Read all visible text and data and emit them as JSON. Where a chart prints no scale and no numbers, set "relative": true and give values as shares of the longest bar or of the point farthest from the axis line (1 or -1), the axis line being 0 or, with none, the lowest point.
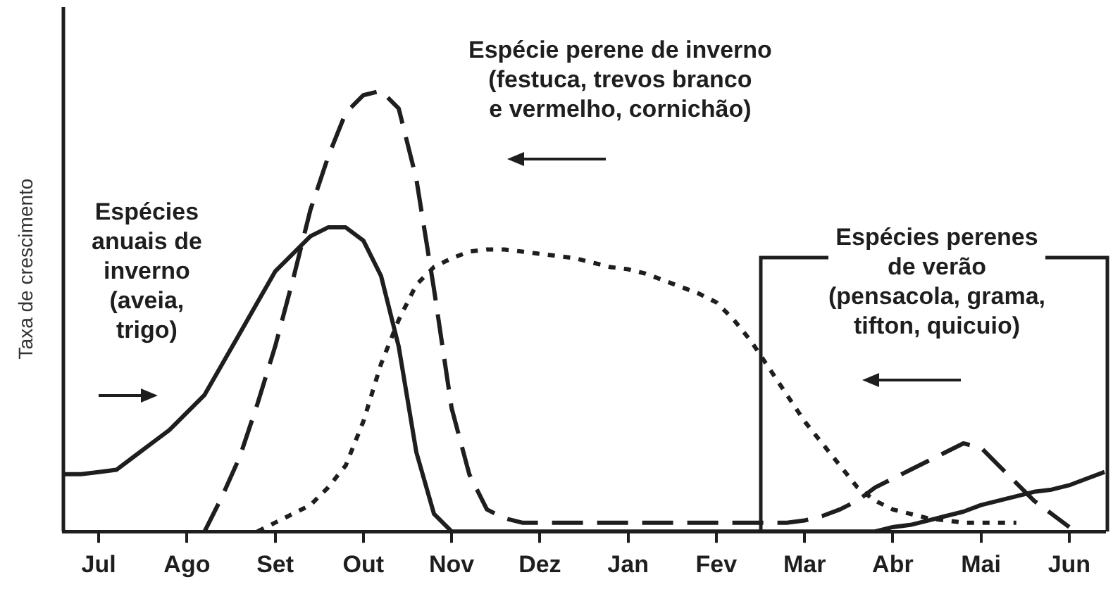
{
  "chart_data": {
    "type": "line",
    "ylabel": "Taxa de crescimento",
    "relative": true,
    "legend": false,
    "grid": false,
    "marker": "none",
    "categories": [
      null,
      null,
      "Jul",
      null,
      null,
      null,
      null,
      "Ago",
      null,
      null,
      null,
      null,
      "Set",
      null,
      null,
      null,
      null,
      "Out",
      null,
      null,
      null,
      null,
      "Nov",
      null,
      null,
      null,
      null,
      "Dez",
      null,
      null,
      null,
      null,
      "Jan",
      null,
      null,
      null,
      null,
      "Fev",
      null,
      null,
      null,
      null,
      "Mar",
      null,
      null,
      null,
      null,
      "Abr",
      null,
      null,
      null,
      null,
      "Mai",
      null,
      null,
      null,
      null,
      "Jun",
      null,
      null
    ],
    "series": [
      {
        "color": "#1e1e1e",
        "line_style": "solid",
        "values": [
          0.13,
          0.13,
          0.135,
          0.14,
          0.17,
          0.2,
          0.23,
          0.27,
          0.31,
          0.38,
          0.45,
          0.52,
          0.59,
          0.63,
          0.67,
          0.69,
          0.69,
          0.66,
          0.58,
          0.42,
          0.18,
          0.04,
          0,
          0,
          0,
          0,
          0,
          0,
          0,
          0,
          0,
          0,
          0,
          0,
          0,
          0,
          0,
          0,
          0,
          0,
          0,
          0,
          0,
          0,
          0,
          0,
          0,
          0.01,
          0.015,
          0.025,
          0.035,
          0.045,
          0.06,
          0.07,
          0.08,
          0.09,
          0.095,
          0.105,
          0.12,
          0.135
        ]
      },
      {
        "color": "#1e1e1e",
        "line_style": "dashed",
        "values": [
          null,
          null,
          null,
          null,
          null,
          null,
          null,
          null,
          0,
          0.08,
          0.17,
          0.29,
          0.42,
          0.57,
          0.73,
          0.85,
          0.95,
          0.99,
          1,
          0.96,
          0.8,
          0.55,
          0.28,
          0.13,
          0.05,
          0.03,
          0.02,
          0.02,
          0.02,
          0.02,
          0.02,
          0.02,
          0.02,
          0.02,
          0.02,
          0.02,
          0.02,
          0.02,
          0.02,
          0.02,
          0.02,
          0.02,
          0.025,
          0.035,
          0.05,
          0.07,
          0.1,
          0.12,
          0.14,
          0.16,
          0.18,
          0.2,
          0.19,
          0.15,
          0.11,
          0.07,
          0.04,
          0.01,
          null,
          null
        ]
      },
      {
        "color": "#1e1e1e",
        "line_style": "dotted",
        "values": [
          null,
          null,
          null,
          null,
          null,
          null,
          null,
          null,
          null,
          null,
          null,
          0,
          0.02,
          0.04,
          0.06,
          0.1,
          0.15,
          0.25,
          0.38,
          0.48,
          0.56,
          0.6,
          0.62,
          0.635,
          0.64,
          0.64,
          0.635,
          0.63,
          0.625,
          0.62,
          0.61,
          0.6,
          0.595,
          0.585,
          0.57,
          0.555,
          0.54,
          0.52,
          0.48,
          0.43,
          0.37,
          0.31,
          0.25,
          0.2,
          0.15,
          0.1,
          0.07,
          0.05,
          0.04,
          0.03,
          0.025,
          0.02,
          0.02,
          0.02,
          0.02,
          null,
          null,
          null,
          null,
          null
        ]
      }
    ],
    "annotations": [
      "Espécie perene de inverno\n(festuca, trevos branco\ne vermelho, cornichão)",
      "Espécies\nanuais de\ninverno\n(aveia,\ntrigo)",
      "Espécies perenes\nde verão\n(pensacola, grama,\ntifton, quicuio)"
    ]
  }
}
